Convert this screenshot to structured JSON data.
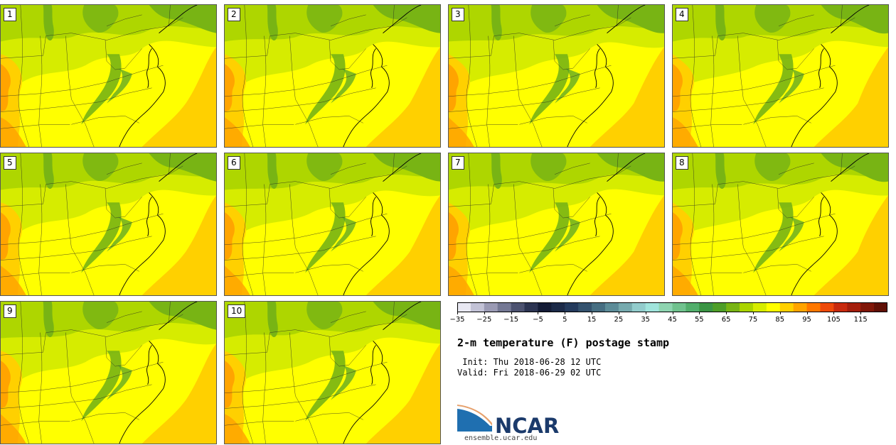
{
  "panels": [
    "1",
    "2",
    "3",
    "4",
    "5",
    "6",
    "7",
    "8",
    "9",
    "10"
  ],
  "colorbar": {
    "colors": [
      "#e8e8f2",
      "#c2c2d6",
      "#9a9ab4",
      "#747894",
      "#4c5270",
      "#2c3452",
      "#141c36",
      "#1c2a48",
      "#243a5c",
      "#34526e",
      "#466e82",
      "#5c8c98",
      "#76aaae",
      "#92cccc",
      "#a0e4dc",
      "#8ed4b0",
      "#70c28e",
      "#52ae6c",
      "#3a9444",
      "#4e9e28",
      "#78b414",
      "#aad400",
      "#d6ec00",
      "#ffff00",
      "#ffd000",
      "#ffa400",
      "#ff7800",
      "#ee4a0a",
      "#c82a0e",
      "#a41e0c",
      "#801608",
      "#601006"
    ],
    "tick_labels": [
      "−35",
      "−25",
      "−15",
      "−5",
      "5",
      "15",
      "25",
      "35",
      "45",
      "55",
      "65",
      "75",
      "85",
      "95",
      "105",
      "115"
    ]
  },
  "title": "2-m temperature (F) postage stamp",
  "init_line": " Init: Thu 2018-06-28 12 UTC",
  "valid_line": "Valid: Fri 2018-06-29 02 UTC",
  "logo": {
    "text": "NCAR",
    "url": "ensemble.ucar.edu"
  },
  "map_colors": {
    "yellow": "#ffff00",
    "yellow_green": "#d6ec00",
    "green_light": "#aad400",
    "green": "#78b414",
    "green_dark": "#4e9e28",
    "orange": "#ffd000",
    "orange_dark": "#ffa400"
  }
}
